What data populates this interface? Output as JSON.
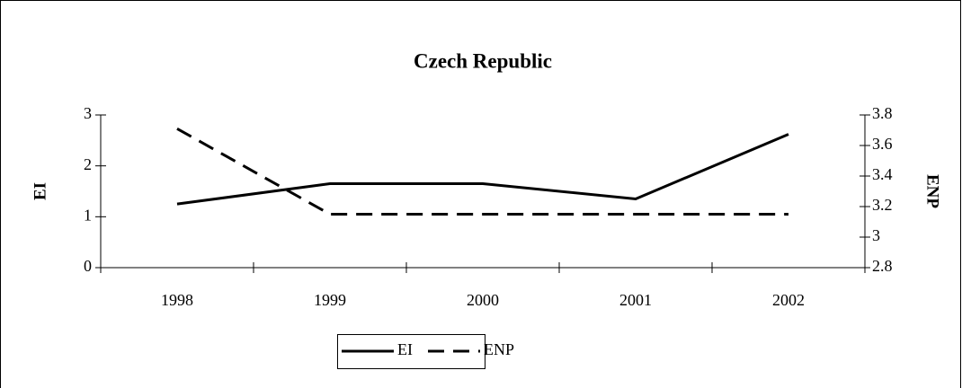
{
  "chart_data": {
    "type": "line",
    "title": "Czech Republic",
    "categories": [
      "1998",
      "1999",
      "2000",
      "2001",
      "2002"
    ],
    "series": [
      {
        "name": "EI",
        "color": "#000000",
        "line_style": "solid",
        "values": [
          1.25,
          1.65,
          1.65,
          1.35,
          2.62
        ]
      },
      {
        "name": "ENP",
        "color": "#000000",
        "line_style": "dashed",
        "axis": "y2",
        "values": [
          3.71,
          3.15,
          3.15,
          3.15,
          3.15
        ]
      }
    ],
    "ylabel": "EI",
    "y2label": "ENP",
    "ylim": [
      0,
      3
    ],
    "yticks": [
      0,
      1,
      2,
      3
    ],
    "y2lim": [
      2.8,
      3.8
    ],
    "y2ticks": [
      2.8,
      3,
      3.2,
      3.4,
      3.6,
      3.8
    ],
    "legend": "bottom"
  }
}
